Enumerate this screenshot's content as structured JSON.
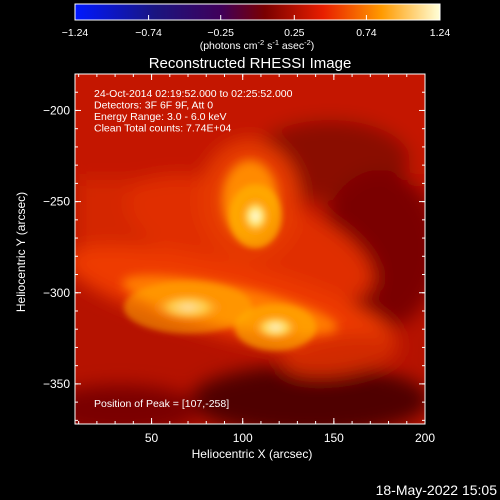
{
  "chart_data": {
    "type": "heatmap",
    "title": "Reconstructed RHESSI Image",
    "xlabel": "Heliocentric X (arcsec)",
    "ylabel": "Heliocentric Y (arcsec)",
    "xlim": [
      8,
      200
    ],
    "ylim": [
      -372,
      -180
    ],
    "x_ticks": [
      50,
      100,
      150,
      200
    ],
    "y_ticks": [
      -200,
      -250,
      -300,
      -350
    ],
    "colorbar": {
      "min": -1.24,
      "max": 1.24,
      "ticks": [
        "-1.24",
        "-0.74",
        "-0.25",
        "0.25",
        "0.74",
        "1.24"
      ],
      "units_prefix": "(photons cm",
      "units_exp1": "-2",
      "units_mid1": " s",
      "units_exp2": "-1",
      "units_mid2": " asec",
      "units_exp3": "-2",
      "units_suffix": ")"
    },
    "annotations": [
      "24-Oct-2014 02:19:52.000 to 02:25:52.000",
      "Detectors: 3F 6F 9F, Att 0",
      "Energy Range: 3.0 - 6.0 keV",
      "Clean     Total counts: 7.74E+04"
    ],
    "peak_text": "Position of Peak = [107,-258]",
    "peak": [
      107,
      -258
    ],
    "sources": [
      {
        "x": 107,
        "y": -258,
        "sx": 9,
        "sy": 11,
        "amp": 1.24
      },
      {
        "x": 118,
        "y": -319,
        "sx": 14,
        "sy": 8,
        "amp": 1.05
      },
      {
        "x": 70,
        "y": -308,
        "sx": 22,
        "sy": 9,
        "amp": 0.85
      }
    ]
  },
  "footer": {
    "timestamp": "18-May-2022 15:05"
  }
}
